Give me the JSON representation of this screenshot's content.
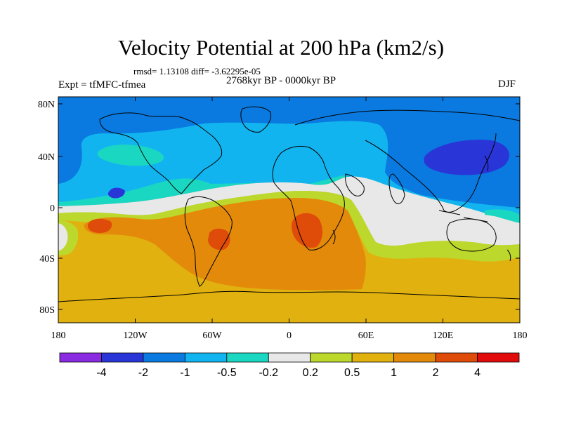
{
  "title": "Velocity Potential at 200 hPa (km2/s)",
  "stats": "rmsd= 1.13108 diff= -3.62295e-05",
  "period": "2768kyr BP - 0000kyr BP",
  "experiment": "Expt = tfMFC-tfmea",
  "season": "DJF",
  "axes": {
    "lat_ticks": [
      "80N",
      "40N",
      "0",
      "40S",
      "80S"
    ],
    "lon_ticks": [
      "180",
      "120W",
      "60W",
      "0",
      "60E",
      "120E",
      "180"
    ]
  },
  "colorbar": {
    "labels": [
      "-4",
      "-2",
      "-1",
      "-0.5",
      "-0.2",
      "0.2",
      "0.5",
      "1",
      "2",
      "4"
    ],
    "colors": [
      "#8a2be2",
      "#2a35d8",
      "#0a7ae0",
      "#12b4f0",
      "#1ad7c2",
      "#e8e8e8",
      "#bcd82c",
      "#e1b10f",
      "#e38a0b",
      "#df4b09",
      "#e20b0b"
    ]
  }
}
